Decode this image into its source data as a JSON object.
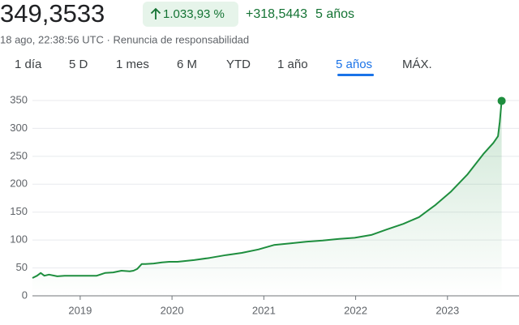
{
  "header": {
    "price": "349,3533",
    "change_percent": "1.033,93 %",
    "change_abs": "+318,5443",
    "change_period": "5 años",
    "subline": "18 ago, 22:38:56 UTC · Renuncia de responsabilidad"
  },
  "tabs": {
    "items": [
      "1 día",
      "5 D",
      "1 mes",
      "6 M",
      "YTD",
      "1 año",
      "5 años",
      "MÁX."
    ],
    "active": 6
  },
  "chart_data": {
    "type": "line",
    "color": "#1e8e3e",
    "grid": true,
    "end_marker": true,
    "area_fill": true,
    "x": [
      2018.48,
      2018.53,
      2018.57,
      2018.61,
      2018.66,
      2018.75,
      2018.83,
      2019.01,
      2019.18,
      2019.27,
      2019.36,
      2019.45,
      2019.54,
      2019.58,
      2019.62,
      2019.67,
      2019.71,
      2019.8,
      2019.89,
      2019.97,
      2020.06,
      2020.24,
      2020.41,
      2020.59,
      2020.76,
      2020.94,
      2021.11,
      2021.29,
      2021.46,
      2021.64,
      2021.82,
      2021.99,
      2022.17,
      2022.34,
      2022.52,
      2022.69,
      2022.78,
      2022.87,
      2023.04,
      2023.22,
      2023.39,
      2023.5,
      2023.55,
      2023.57,
      2023.59
    ],
    "values": [
      32,
      36,
      41,
      36,
      38,
      35,
      36,
      36,
      36,
      41,
      42,
      45,
      44,
      45,
      48,
      57,
      57,
      58,
      60,
      61,
      61,
      64,
      68,
      73,
      77,
      83,
      91,
      94,
      97,
      99,
      102,
      104,
      109,
      119,
      129,
      141,
      152,
      163,
      187,
      218,
      254,
      274,
      286,
      312,
      349.3533
    ],
    "xlim": [
      2018.48,
      2023.62
    ],
    "xticks": [
      2019,
      2020,
      2021,
      2022,
      2023
    ],
    "ylim": [
      0,
      350
    ],
    "yticks": [
      0,
      50,
      100,
      150,
      200,
      250,
      300,
      350
    ]
  }
}
